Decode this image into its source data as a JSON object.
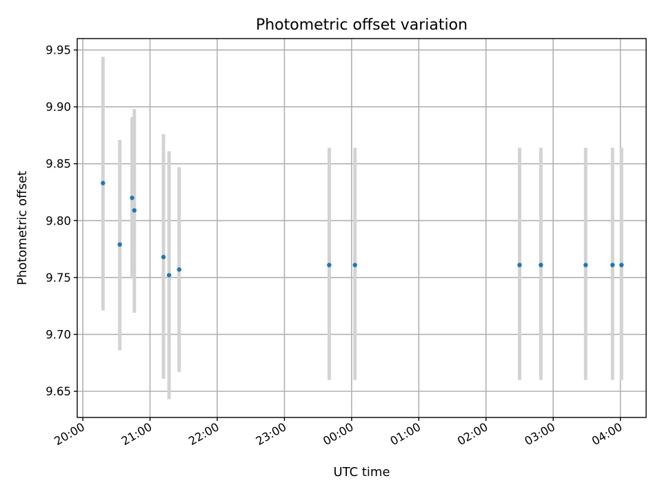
{
  "chart_data": {
    "type": "scatter",
    "title": "Photometric offset variation",
    "xlabel": "UTC time",
    "ylabel": "Photometric offset",
    "x_tick_labels": [
      "20:00",
      "21:00",
      "22:00",
      "23:00",
      "00:00",
      "01:00",
      "02:00",
      "03:00",
      "04:00"
    ],
    "y_tick_labels": [
      "9.65",
      "9.70",
      "9.75",
      "9.80",
      "9.85",
      "9.90",
      "9.95"
    ],
    "x_ticks": [
      "20:00",
      "21:00",
      "22:00",
      "23:00",
      "24:00",
      "25:00",
      "26:00",
      "27:00",
      "28:00"
    ],
    "y_ticks": [
      9.65,
      9.7,
      9.75,
      9.8,
      9.85,
      9.9,
      9.95
    ],
    "xlim": [
      "19:55",
      "28:23"
    ],
    "ylim": [
      9.627,
      9.96
    ],
    "grid": true,
    "marker_color": "#1f77b4",
    "errorbar_color": "#d3d3d3",
    "points": [
      {
        "x": "20:18",
        "y": 9.833,
        "ylow": 9.721,
        "yhigh": 9.944
      },
      {
        "x": "20:33",
        "y": 9.779,
        "ylow": 9.686,
        "yhigh": 9.871
      },
      {
        "x": "20:44",
        "y": 9.82,
        "ylow": 9.749,
        "yhigh": 9.891
      },
      {
        "x": "20:46",
        "y": 9.809,
        "ylow": 9.719,
        "yhigh": 9.898
      },
      {
        "x": "21:12",
        "y": 9.768,
        "ylow": 9.661,
        "yhigh": 9.876
      },
      {
        "x": "21:17",
        "y": 9.752,
        "ylow": 9.643,
        "yhigh": 9.861
      },
      {
        "x": "21:26",
        "y": 9.757,
        "ylow": 9.667,
        "yhigh": 9.847
      },
      {
        "x": "23:40",
        "y": 9.761,
        "ylow": 9.66,
        "yhigh": 9.864
      },
      {
        "x": "24:03",
        "y": 9.761,
        "ylow": 9.66,
        "yhigh": 9.864
      },
      {
        "x": "26:30",
        "y": 9.761,
        "ylow": 9.66,
        "yhigh": 9.864
      },
      {
        "x": "26:49",
        "y": 9.761,
        "ylow": 9.66,
        "yhigh": 9.864
      },
      {
        "x": "27:29",
        "y": 9.761,
        "ylow": 9.66,
        "yhigh": 9.864
      },
      {
        "x": "27:53",
        "y": 9.761,
        "ylow": 9.66,
        "yhigh": 9.864
      },
      {
        "x": "28:01",
        "y": 9.761,
        "ylow": 9.66,
        "yhigh": 9.864
      }
    ]
  }
}
